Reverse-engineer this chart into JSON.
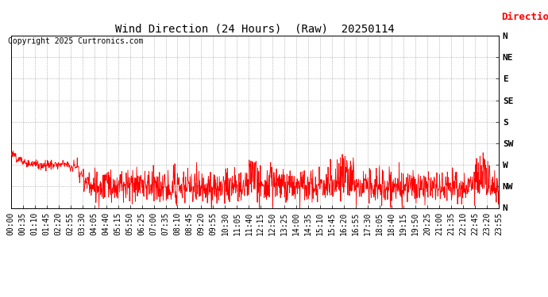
{
  "title": "Wind Direction (24 Hours)  (Raw)  20250114",
  "copyright": "Copyright 2025 Curtronics.com",
  "legend_label": "Direction",
  "legend_color": "#ff0000",
  "line_color": "#ff0000",
  "background_color": "#ffffff",
  "grid_color": "#b0b0b0",
  "ytick_labels_top_to_bottom": [
    "N",
    "NW",
    "W",
    "SW",
    "S",
    "SE",
    "E",
    "NE",
    "N"
  ],
  "ytick_values_top_to_bottom": [
    360,
    315,
    270,
    225,
    180,
    135,
    90,
    45,
    0
  ],
  "ylim": [
    0,
    360
  ],
  "title_fontsize": 10,
  "axis_fontsize": 7,
  "copyright_fontsize": 7,
  "legend_fontsize": 9
}
